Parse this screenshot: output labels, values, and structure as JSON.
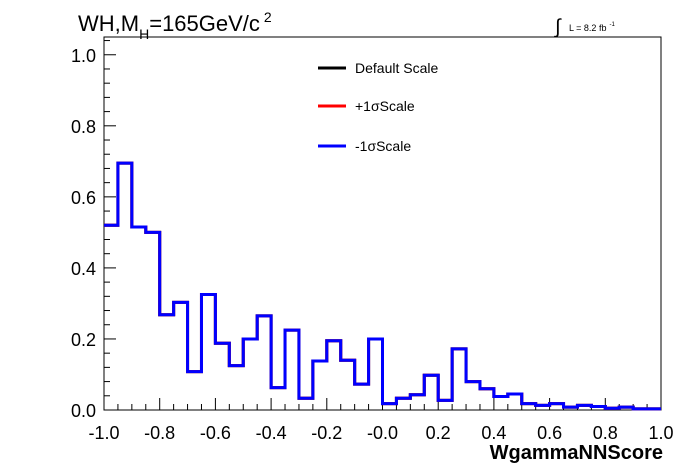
{
  "chart_data": {
    "type": "histogram",
    "title_parts": {
      "a": "WH,M",
      "sub": "H",
      "b": "=165GeV/c",
      "sup": "2"
    },
    "lumi_parts": {
      "integral": "∫",
      "text": "L = 8.2 fb",
      "sup": "-1"
    },
    "xlabel": "WgammaNNScore",
    "ylabel": "",
    "xlim": [
      -1.0,
      1.0
    ],
    "ylim": [
      0.0,
      1.05
    ],
    "x_ticks": [
      "-1.0",
      "-0.8",
      "-0.6",
      "-0.4",
      "-0.2",
      "-0.0",
      "0.2",
      "0.4",
      "0.6",
      "0.8",
      "1.0"
    ],
    "y_ticks": [
      "0.0",
      "0.2",
      "0.4",
      "0.6",
      "0.8",
      "1.0"
    ],
    "grid": false,
    "legend_position": "top-right",
    "bin_edges_start": -1.0,
    "bin_width": 0.05,
    "series": [
      {
        "name": "Default Scale",
        "color": "#000000",
        "values": [
          0.52,
          0.695,
          0.515,
          0.5,
          0.268,
          0.303,
          0.108,
          0.325,
          0.188,
          0.125,
          0.2,
          0.265,
          0.063,
          0.225,
          0.033,
          0.138,
          0.195,
          0.14,
          0.073,
          0.2,
          0.018,
          0.033,
          0.043,
          0.098,
          0.027,
          0.172,
          0.08,
          0.06,
          0.038,
          0.045,
          0.018,
          0.013,
          0.018,
          0.008,
          0.013,
          0.01,
          0.005,
          0.008,
          0.003,
          0.003
        ]
      },
      {
        "name": "+1σScale",
        "color": "#ff0000",
        "values": [
          0.52,
          0.695,
          0.515,
          0.5,
          0.268,
          0.303,
          0.108,
          0.325,
          0.188,
          0.125,
          0.2,
          0.265,
          0.063,
          0.225,
          0.033,
          0.138,
          0.195,
          0.14,
          0.073,
          0.2,
          0.018,
          0.033,
          0.043,
          0.098,
          0.027,
          0.172,
          0.08,
          0.06,
          0.038,
          0.045,
          0.018,
          0.013,
          0.018,
          0.008,
          0.013,
          0.01,
          0.005,
          0.008,
          0.003,
          0.003
        ]
      },
      {
        "name": "-1σScale",
        "color": "#0000ff",
        "values": [
          0.52,
          0.695,
          0.515,
          0.5,
          0.268,
          0.303,
          0.108,
          0.325,
          0.188,
          0.125,
          0.2,
          0.265,
          0.063,
          0.225,
          0.033,
          0.138,
          0.195,
          0.14,
          0.073,
          0.2,
          0.018,
          0.033,
          0.043,
          0.098,
          0.027,
          0.172,
          0.08,
          0.06,
          0.038,
          0.045,
          0.018,
          0.013,
          0.018,
          0.008,
          0.013,
          0.01,
          0.005,
          0.008,
          0.003,
          0.003
        ]
      }
    ]
  }
}
